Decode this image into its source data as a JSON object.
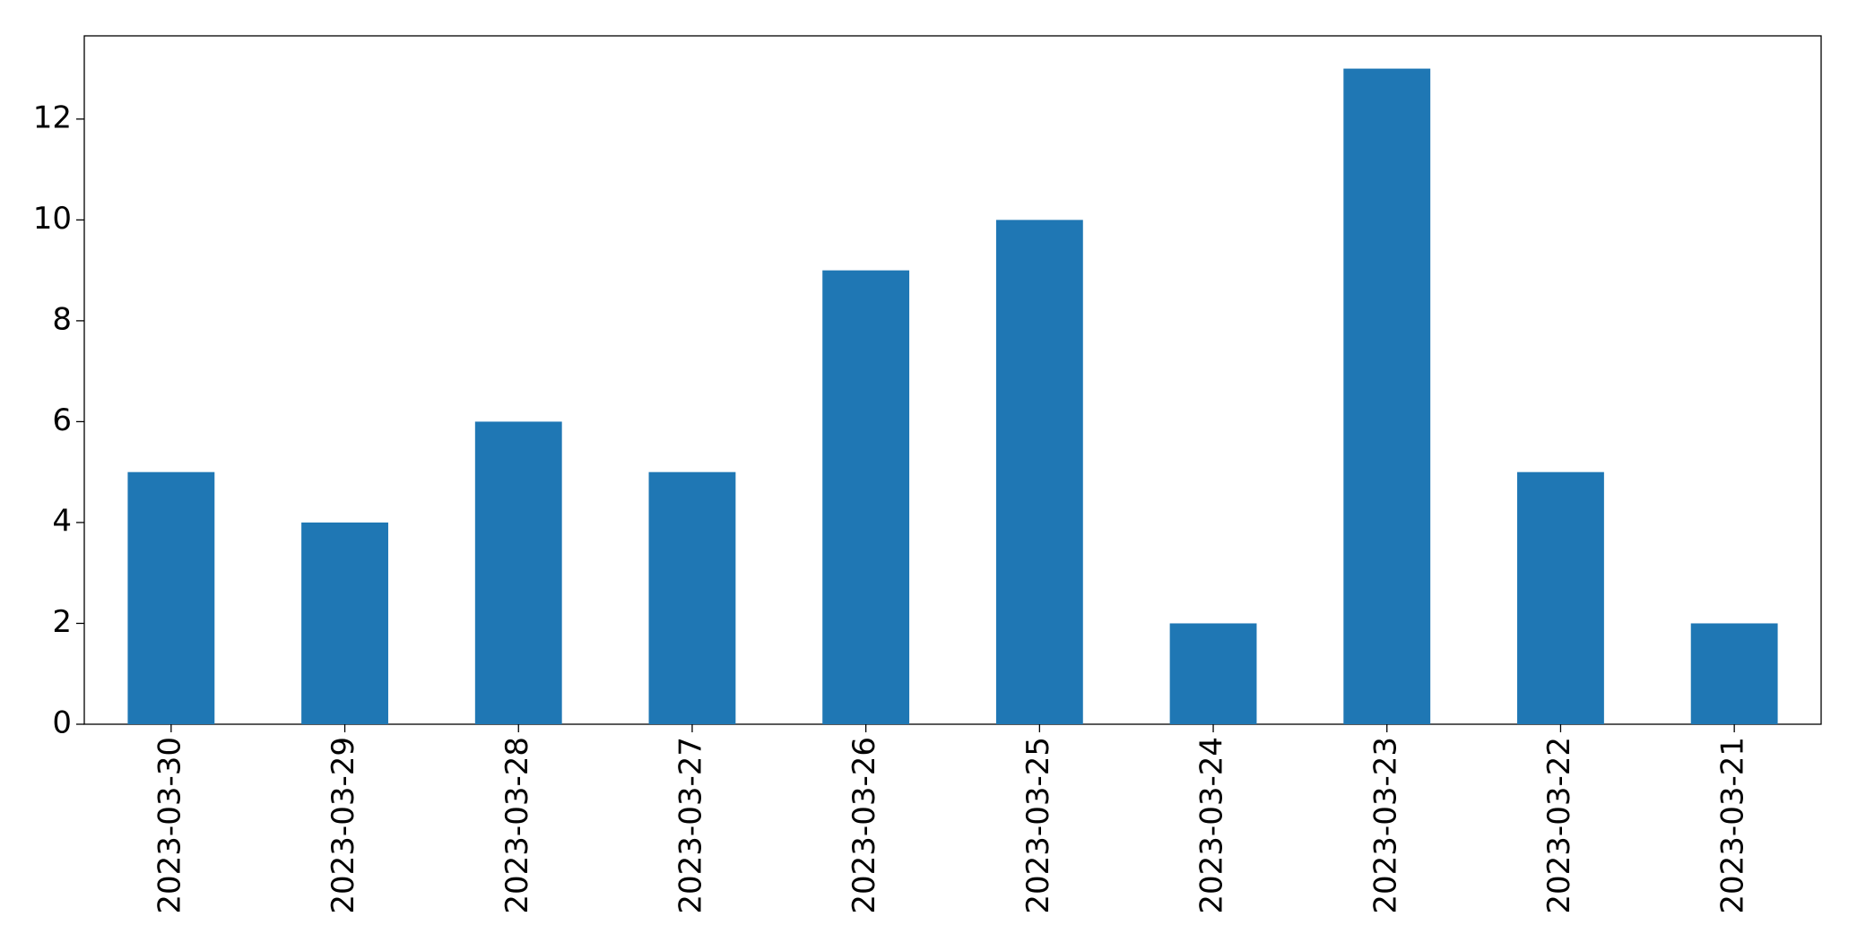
{
  "chart_data": {
    "type": "bar",
    "categories": [
      "2023-03-30",
      "2023-03-29",
      "2023-03-28",
      "2023-03-27",
      "2023-03-26",
      "2023-03-25",
      "2023-03-24",
      "2023-03-23",
      "2023-03-22",
      "2023-03-21"
    ],
    "values": [
      5,
      4,
      6,
      5,
      9,
      10,
      2,
      13,
      5,
      2
    ],
    "color": "#1f77b4",
    "ylim": [
      0,
      13.65
    ],
    "yticks": [
      0,
      2,
      4,
      6,
      8,
      10,
      12
    ],
    "grid": false
  }
}
